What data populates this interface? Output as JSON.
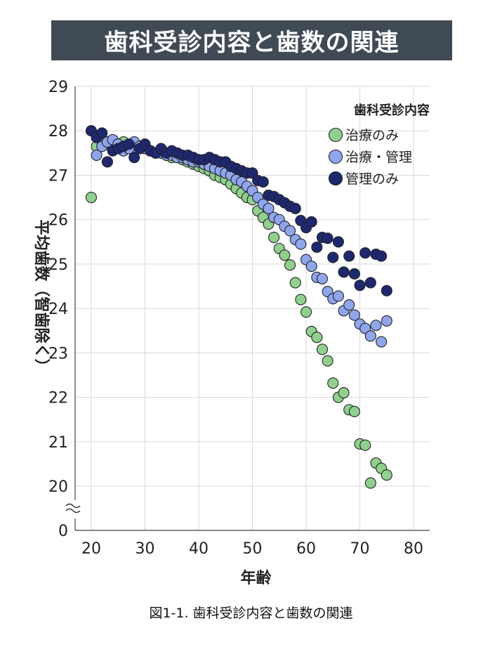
{
  "title": "歯科受診内容と歯数の関連",
  "caption": "図1-1. 歯科受診内容と歯数の関連",
  "chart_data": {
    "type": "scatter",
    "xlabel": "年齢",
    "ylabel": "平均歯数（智歯除く）",
    "xlim": [
      17,
      83
    ],
    "ylim": [
      20,
      29
    ],
    "y_axis_break": true,
    "y_break_label": "0",
    "xticks": [
      20,
      30,
      40,
      50,
      60,
      70,
      80
    ],
    "yticks": [
      20,
      21,
      22,
      23,
      24,
      25,
      26,
      27,
      28,
      29
    ],
    "grid": true,
    "legend_title": "歯科受診内容",
    "legend_position": "top-right",
    "series": [
      {
        "name": "治療のみ",
        "color": "#8fd18c",
        "points": [
          [
            20,
            26.5
          ],
          [
            21,
            27.65
          ],
          [
            22,
            27.8
          ],
          [
            23,
            27.7
          ],
          [
            24,
            27.65
          ],
          [
            25,
            27.7
          ],
          [
            26,
            27.75
          ],
          [
            27,
            27.6
          ],
          [
            28,
            27.7
          ],
          [
            29,
            27.65
          ],
          [
            30,
            27.6
          ],
          [
            31,
            27.55
          ],
          [
            32,
            27.5
          ],
          [
            33,
            27.5
          ],
          [
            34,
            27.45
          ],
          [
            35,
            27.4
          ],
          [
            36,
            27.4
          ],
          [
            37,
            27.35
          ],
          [
            38,
            27.3
          ],
          [
            39,
            27.25
          ],
          [
            40,
            27.2
          ],
          [
            41,
            27.15
          ],
          [
            42,
            27.1
          ],
          [
            43,
            27.0
          ],
          [
            44,
            26.95
          ],
          [
            45,
            26.9
          ],
          [
            46,
            26.8
          ],
          [
            47,
            26.7
          ],
          [
            48,
            26.6
          ],
          [
            49,
            26.5
          ],
          [
            50,
            26.45
          ],
          [
            51,
            26.2
          ],
          [
            52,
            26.05
          ],
          [
            53,
            25.9
          ],
          [
            54,
            25.6
          ],
          [
            55,
            25.35
          ],
          [
            56,
            25.2
          ],
          [
            57,
            24.98
          ],
          [
            58,
            24.58
          ],
          [
            59,
            24.2
          ],
          [
            60,
            23.92
          ],
          [
            61,
            23.48
          ],
          [
            62,
            23.35
          ],
          [
            63,
            23.08
          ],
          [
            64,
            22.82
          ],
          [
            65,
            22.32
          ],
          [
            66,
            22.0
          ],
          [
            67,
            22.1
          ],
          [
            68,
            21.72
          ],
          [
            69,
            21.68
          ],
          [
            70,
            20.95
          ],
          [
            71,
            20.92
          ],
          [
            72,
            20.07
          ],
          [
            73,
            20.52
          ],
          [
            74,
            20.4
          ],
          [
            75,
            20.25
          ]
        ]
      },
      {
        "name": "治療・管理",
        "color": "#8fa6ee",
        "points": [
          [
            21,
            27.45
          ],
          [
            22,
            27.65
          ],
          [
            23,
            27.75
          ],
          [
            24,
            27.8
          ],
          [
            25,
            27.7
          ],
          [
            26,
            27.55
          ],
          [
            27,
            27.6
          ],
          [
            28,
            27.75
          ],
          [
            29,
            27.65
          ],
          [
            30,
            27.6
          ],
          [
            31,
            27.55
          ],
          [
            32,
            27.5
          ],
          [
            33,
            27.5
          ],
          [
            34,
            27.45
          ],
          [
            35,
            27.45
          ],
          [
            36,
            27.4
          ],
          [
            37,
            27.4
          ],
          [
            38,
            27.35
          ],
          [
            39,
            27.3
          ],
          [
            40,
            27.3
          ],
          [
            41,
            27.25
          ],
          [
            42,
            27.2
          ],
          [
            43,
            27.15
          ],
          [
            44,
            27.1
          ],
          [
            45,
            27.05
          ],
          [
            46,
            27.0
          ],
          [
            47,
            26.9
          ],
          [
            48,
            26.85
          ],
          [
            49,
            26.75
          ],
          [
            50,
            26.65
          ],
          [
            51,
            26.5
          ],
          [
            52,
            26.35
          ],
          [
            53,
            26.25
          ],
          [
            54,
            26.05
          ],
          [
            55,
            26.0
          ],
          [
            56,
            25.85
          ],
          [
            57,
            25.75
          ],
          [
            58,
            25.55
          ],
          [
            59,
            25.45
          ],
          [
            60,
            25.1
          ],
          [
            61,
            24.95
          ],
          [
            62,
            24.7
          ],
          [
            63,
            24.67
          ],
          [
            64,
            24.38
          ],
          [
            65,
            24.22
          ],
          [
            66,
            24.28
          ],
          [
            67,
            23.95
          ],
          [
            68,
            24.08
          ],
          [
            69,
            23.85
          ],
          [
            70,
            23.65
          ],
          [
            71,
            23.55
          ],
          [
            72,
            23.38
          ],
          [
            73,
            23.62
          ],
          [
            74,
            23.25
          ],
          [
            75,
            23.72
          ]
        ]
      },
      {
        "name": "管理のみ",
        "color": "#1e2870",
        "points": [
          [
            20,
            28.0
          ],
          [
            21,
            27.85
          ],
          [
            22,
            27.95
          ],
          [
            23,
            27.3
          ],
          [
            24,
            27.55
          ],
          [
            25,
            27.6
          ],
          [
            26,
            27.65
          ],
          [
            27,
            27.7
          ],
          [
            28,
            27.4
          ],
          [
            29,
            27.6
          ],
          [
            30,
            27.7
          ],
          [
            31,
            27.55
          ],
          [
            32,
            27.5
          ],
          [
            33,
            27.6
          ],
          [
            34,
            27.5
          ],
          [
            35,
            27.55
          ],
          [
            36,
            27.5
          ],
          [
            37,
            27.45
          ],
          [
            38,
            27.45
          ],
          [
            39,
            27.4
          ],
          [
            40,
            27.35
          ],
          [
            41,
            27.35
          ],
          [
            42,
            27.4
          ],
          [
            43,
            27.35
          ],
          [
            44,
            27.3
          ],
          [
            45,
            27.3
          ],
          [
            46,
            27.2
          ],
          [
            47,
            27.15
          ],
          [
            48,
            27.1
          ],
          [
            49,
            27.05
          ],
          [
            50,
            27.05
          ],
          [
            51,
            26.88
          ],
          [
            52,
            26.85
          ],
          [
            53,
            26.55
          ],
          [
            54,
            26.52
          ],
          [
            55,
            26.45
          ],
          [
            56,
            26.38
          ],
          [
            57,
            26.3
          ],
          [
            58,
            26.25
          ],
          [
            59,
            25.98
          ],
          [
            60,
            25.82
          ],
          [
            61,
            25.95
          ],
          [
            62,
            25.38
          ],
          [
            63,
            25.6
          ],
          [
            64,
            25.58
          ],
          [
            65,
            25.15
          ],
          [
            66,
            25.5
          ],
          [
            67,
            24.82
          ],
          [
            68,
            25.18
          ],
          [
            69,
            24.78
          ],
          [
            70,
            24.52
          ],
          [
            71,
            25.25
          ],
          [
            72,
            24.58
          ],
          [
            73,
            25.22
          ],
          [
            74,
            25.18
          ],
          [
            75,
            24.4
          ]
        ]
      }
    ]
  }
}
